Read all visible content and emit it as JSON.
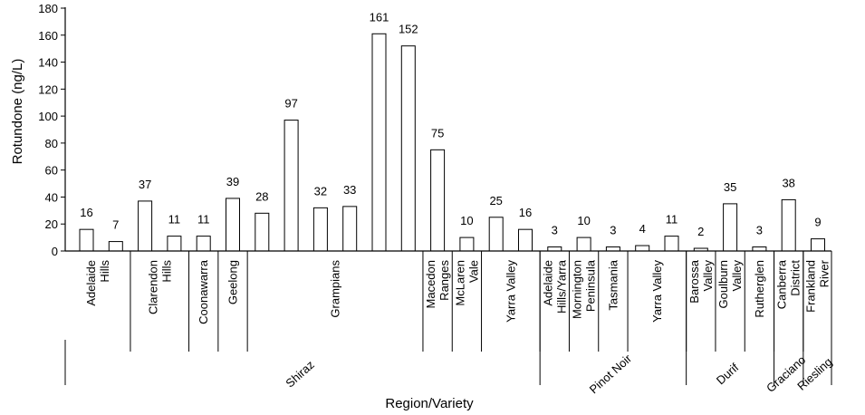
{
  "chart_data": {
    "type": "bar",
    "xlabel": "Region/Variety",
    "ylabel": "Rotundone (ng/L)",
    "ylim": [
      0,
      180
    ],
    "yticks": [
      0,
      20,
      40,
      60,
      80,
      100,
      120,
      140,
      160,
      180
    ],
    "grid": false,
    "values": [
      16,
      7,
      37,
      11,
      11,
      39,
      28,
      97,
      32,
      33,
      161,
      152,
      75,
      10,
      25,
      16,
      3,
      10,
      3,
      4,
      11,
      2,
      35,
      3,
      38,
      9
    ],
    "value_labels": [
      "16",
      "7",
      "37",
      "11",
      "11",
      "39",
      "28",
      "97",
      "32",
      "33",
      "161",
      "152",
      "75",
      "10",
      "25",
      "16",
      "3",
      "10",
      "3",
      "4",
      "11",
      "2",
      "35",
      "3",
      "38",
      "9"
    ],
    "regions": [
      {
        "lines": [
          "Adelaide",
          "Hills"
        ],
        "bars": [
          0,
          1
        ]
      },
      {
        "lines": [
          "Clarendon",
          "Hills"
        ],
        "bars": [
          2,
          3
        ]
      },
      {
        "lines": [
          "Coonawarra"
        ],
        "bars": [
          4
        ]
      },
      {
        "lines": [
          "Geelong"
        ],
        "bars": [
          5
        ]
      },
      {
        "lines": [
          "Grampians"
        ],
        "bars": [
          6,
          11
        ]
      },
      {
        "lines": [
          "Macedon",
          "Ranges"
        ],
        "bars": [
          12
        ]
      },
      {
        "lines": [
          "McLaren",
          "Vale"
        ],
        "bars": [
          13
        ]
      },
      {
        "lines": [
          "Yarra Valley"
        ],
        "bars": [
          14,
          15
        ]
      },
      {
        "lines": [
          "Adelaide",
          "Hills/Yarra"
        ],
        "bars": [
          16
        ]
      },
      {
        "lines": [
          "Mornington",
          "Peninsula"
        ],
        "bars": [
          17
        ]
      },
      {
        "lines": [
          "Tasmania"
        ],
        "bars": [
          18
        ]
      },
      {
        "lines": [
          "Yarra Valley"
        ],
        "bars": [
          19,
          20
        ]
      },
      {
        "lines": [
          "Barossa",
          "Valley"
        ],
        "bars": [
          21
        ]
      },
      {
        "lines": [
          "Goulburn",
          "Valley"
        ],
        "bars": [
          22
        ]
      },
      {
        "lines": [
          "Rutherglen"
        ],
        "bars": [
          23
        ]
      },
      {
        "lines": [
          "Canberra",
          "District"
        ],
        "bars": [
          24
        ]
      },
      {
        "lines": [
          "Frankland",
          "River"
        ],
        "bars": [
          25
        ]
      }
    ],
    "varieties": [
      {
        "name": "Shiraz",
        "bars": [
          0,
          15
        ]
      },
      {
        "name": "Pinot Noir",
        "bars": [
          16,
          20
        ]
      },
      {
        "name": "Durif",
        "bars": [
          21,
          23
        ]
      },
      {
        "name": "Graciano",
        "bars": [
          24,
          24
        ]
      },
      {
        "name": "Riesling",
        "bars": [
          25,
          25
        ]
      }
    ]
  }
}
